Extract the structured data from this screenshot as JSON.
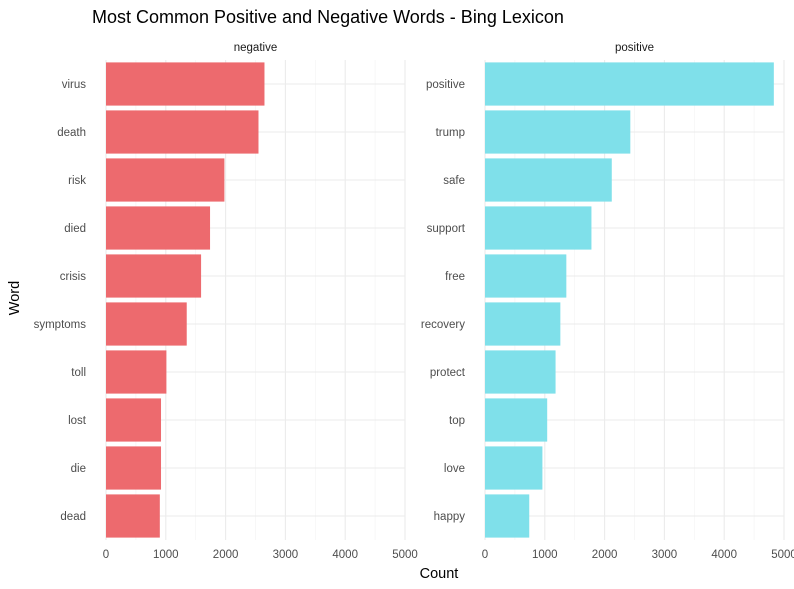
{
  "chart_data": {
    "type": "bar",
    "orientation": "horizontal",
    "title": "Most Common Positive and Negative Words - Bing Lexicon",
    "xlabel": "Count",
    "ylabel": "Word",
    "xlim": [
      0,
      5000
    ],
    "xticks": [
      0,
      1000,
      2000,
      3000,
      4000,
      5000
    ],
    "xtick_labels": [
      "0",
      "1000",
      "2000",
      "3000",
      "4000",
      "5000"
    ],
    "grid": true,
    "legend": "none",
    "panels": [
      {
        "name": "negative",
        "color": "#ED6A6E",
        "categories": [
          "virus",
          "death",
          "risk",
          "died",
          "crisis",
          "symptoms",
          "toll",
          "lost",
          "die",
          "dead"
        ],
        "values": [
          2650,
          2550,
          1980,
          1740,
          1590,
          1350,
          1010,
          920,
          920,
          900
        ]
      },
      {
        "name": "positive",
        "color": "#7FE0EA",
        "categories": [
          "positive",
          "trump",
          "safe",
          "support",
          "free",
          "recovery",
          "protect",
          "top",
          "love",
          "happy"
        ],
        "values": [
          4830,
          2430,
          2120,
          1780,
          1360,
          1260,
          1180,
          1040,
          960,
          740
        ]
      }
    ]
  }
}
